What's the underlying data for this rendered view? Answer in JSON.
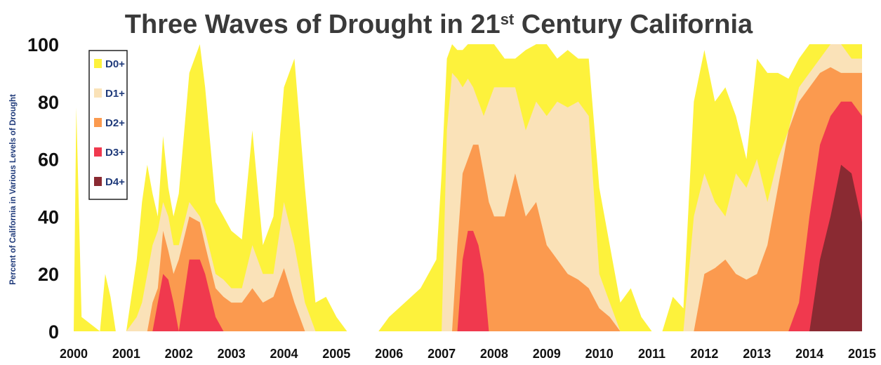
{
  "chart_data": {
    "type": "area",
    "title": "Three Waves of Drought in 21",
    "title_superscript": "st",
    "title_suffix": " Century California",
    "ylabel": "Percent of California in Various Levels of Drought",
    "xlabel": "",
    "xlim": [
      2000,
      2015
    ],
    "ylim": [
      0,
      100
    ],
    "x_ticks": [
      "2000",
      "2001",
      "2002",
      "2003",
      "2004",
      "2005",
      "2006",
      "2007",
      "2008",
      "2009",
      "2010",
      "2011",
      "2012",
      "2013",
      "2014",
      "2015"
    ],
    "y_ticks": [
      "0",
      "20",
      "40",
      "60",
      "80",
      "100"
    ],
    "grid": false,
    "legend_position": "top-left",
    "x": [
      2000.0,
      2000.05,
      2000.15,
      2000.5,
      2000.6,
      2000.7,
      2000.8,
      2001.0,
      2001.2,
      2001.3,
      2001.4,
      2001.5,
      2001.6,
      2001.7,
      2001.8,
      2001.9,
      2002.0,
      2002.2,
      2002.4,
      2002.5,
      2002.7,
      2002.85,
      2003.0,
      2003.2,
      2003.4,
      2003.6,
      2003.8,
      2004.0,
      2004.2,
      2004.4,
      2004.6,
      2004.8,
      2005.0,
      2005.2,
      2005.5,
      2005.8,
      2006.0,
      2006.3,
      2006.6,
      2006.9,
      2007.0,
      2007.1,
      2007.2,
      2007.3,
      2007.4,
      2007.5,
      2007.6,
      2007.7,
      2007.8,
      2007.9,
      2008.0,
      2008.2,
      2008.4,
      2008.6,
      2008.8,
      2009.0,
      2009.2,
      2009.4,
      2009.6,
      2009.8,
      2010.0,
      2010.2,
      2010.4,
      2010.6,
      2010.8,
      2011.0,
      2011.2,
      2011.4,
      2011.6,
      2011.8,
      2012.0,
      2012.2,
      2012.4,
      2012.6,
      2012.8,
      2013.0,
      2013.2,
      2013.4,
      2013.6,
      2013.8,
      2014.0,
      2014.2,
      2014.4,
      2014.6,
      2014.8,
      2015.0
    ],
    "series": [
      {
        "name": "D0+",
        "color": "#fdf23c",
        "values": [
          0,
          78,
          5,
          0,
          20,
          12,
          0,
          0,
          25,
          45,
          58,
          48,
          40,
          68,
          50,
          40,
          48,
          90,
          100,
          85,
          45,
          40,
          35,
          32,
          70,
          30,
          40,
          85,
          95,
          50,
          10,
          12,
          5,
          0,
          0,
          0,
          5,
          10,
          15,
          25,
          55,
          95,
          100,
          98,
          98,
          100,
          100,
          100,
          100,
          100,
          100,
          95,
          95,
          98,
          100,
          100,
          95,
          98,
          95,
          95,
          50,
          30,
          10,
          15,
          5,
          0,
          0,
          12,
          8,
          80,
          98,
          80,
          85,
          75,
          60,
          95,
          90,
          90,
          88,
          95,
          100,
          100,
          100,
          100,
          100,
          100
        ]
      },
      {
        "name": "D1+",
        "color": "#fae2b8",
        "values": [
          0,
          0,
          0,
          0,
          0,
          0,
          0,
          0,
          5,
          10,
          20,
          30,
          35,
          45,
          40,
          30,
          30,
          45,
          40,
          35,
          20,
          18,
          15,
          15,
          30,
          20,
          20,
          45,
          30,
          10,
          0,
          0,
          0,
          0,
          0,
          0,
          0,
          0,
          0,
          0,
          0,
          70,
          90,
          88,
          85,
          88,
          85,
          80,
          75,
          80,
          85,
          85,
          85,
          70,
          80,
          75,
          80,
          78,
          80,
          75,
          20,
          10,
          0,
          0,
          0,
          0,
          0,
          0,
          0,
          40,
          55,
          45,
          40,
          55,
          50,
          60,
          45,
          60,
          70,
          85,
          90,
          95,
          100,
          100,
          95,
          95
        ]
      },
      {
        "name": "D2+",
        "color": "#fb9a4f",
        "values": [
          0,
          0,
          0,
          0,
          0,
          0,
          0,
          0,
          0,
          0,
          0,
          10,
          15,
          35,
          28,
          20,
          25,
          40,
          38,
          30,
          15,
          12,
          10,
          10,
          15,
          10,
          12,
          22,
          10,
          0,
          0,
          0,
          0,
          0,
          0,
          0,
          0,
          0,
          0,
          0,
          0,
          0,
          0,
          30,
          55,
          60,
          65,
          65,
          55,
          45,
          40,
          40,
          55,
          40,
          45,
          30,
          25,
          20,
          18,
          15,
          8,
          5,
          0,
          0,
          0,
          0,
          0,
          0,
          0,
          0,
          20,
          22,
          25,
          20,
          18,
          20,
          30,
          50,
          70,
          80,
          85,
          90,
          92,
          90,
          90,
          90
        ]
      },
      {
        "name": "D3+",
        "color": "#f0394e",
        "values": [
          0,
          0,
          0,
          0,
          0,
          0,
          0,
          0,
          0,
          0,
          0,
          0,
          10,
          20,
          18,
          10,
          0,
          25,
          25,
          20,
          5,
          0,
          0,
          0,
          0,
          0,
          0,
          0,
          0,
          0,
          0,
          0,
          0,
          0,
          0,
          0,
          0,
          0,
          0,
          0,
          0,
          0,
          0,
          0,
          25,
          35,
          35,
          30,
          20,
          0,
          0,
          0,
          0,
          0,
          0,
          0,
          0,
          0,
          0,
          0,
          0,
          0,
          0,
          0,
          0,
          0,
          0,
          0,
          0,
          0,
          0,
          0,
          0,
          0,
          0,
          0,
          0,
          0,
          0,
          10,
          40,
          65,
          75,
          80,
          80,
          75
        ]
      },
      {
        "name": "D4+",
        "color": "#8a2a32",
        "values": [
          0,
          0,
          0,
          0,
          0,
          0,
          0,
          0,
          0,
          0,
          0,
          0,
          0,
          0,
          0,
          0,
          0,
          0,
          0,
          0,
          0,
          0,
          0,
          0,
          0,
          0,
          0,
          0,
          0,
          0,
          0,
          0,
          0,
          0,
          0,
          0,
          0,
          0,
          0,
          0,
          0,
          0,
          0,
          0,
          0,
          0,
          0,
          0,
          0,
          0,
          0,
          0,
          0,
          0,
          0,
          0,
          0,
          0,
          0,
          0,
          0,
          0,
          0,
          0,
          0,
          0,
          0,
          0,
          0,
          0,
          0,
          0,
          0,
          0,
          0,
          0,
          0,
          0,
          0,
          0,
          0,
          25,
          40,
          58,
          55,
          38
        ]
      }
    ]
  }
}
